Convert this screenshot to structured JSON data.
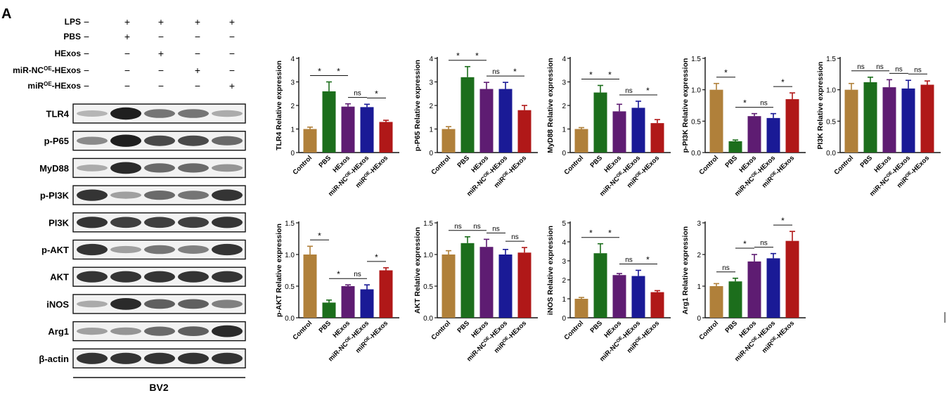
{
  "panel_label": "A",
  "western_blot": {
    "conditions": [
      {
        "name": "LPS",
        "signs": [
          "−",
          "+",
          "+",
          "+",
          "+"
        ]
      },
      {
        "name": "PBS",
        "signs": [
          "−",
          "+",
          "−",
          "−",
          "−"
        ]
      },
      {
        "name": "HExos",
        "signs": [
          "−",
          "−",
          "+",
          "−",
          "−"
        ]
      },
      {
        "name": "miR-NC",
        "sup": "OE",
        "suffix": "-HExos",
        "signs": [
          "−",
          "−",
          "−",
          "+",
          "−"
        ]
      },
      {
        "name": "miR",
        "sup": "OE",
        "suffix": "-HExos",
        "signs": [
          "−",
          "−",
          "−",
          "−",
          "+"
        ]
      }
    ],
    "bands": [
      {
        "label": "TLR4",
        "intensities": [
          0.25,
          0.95,
          0.55,
          0.55,
          0.3
        ]
      },
      {
        "label": "p-P65",
        "intensities": [
          0.45,
          0.95,
          0.75,
          0.75,
          0.6
        ]
      },
      {
        "label": "MyD88",
        "intensities": [
          0.3,
          0.9,
          0.6,
          0.6,
          0.4
        ]
      },
      {
        "label": "p-PI3K",
        "intensities": [
          0.85,
          0.35,
          0.6,
          0.55,
          0.85
        ]
      },
      {
        "label": "PI3K",
        "intensities": [
          0.85,
          0.8,
          0.8,
          0.8,
          0.85
        ]
      },
      {
        "label": "p-AKT",
        "intensities": [
          0.85,
          0.35,
          0.55,
          0.5,
          0.85
        ]
      },
      {
        "label": "AKT",
        "intensities": [
          0.85,
          0.85,
          0.85,
          0.85,
          0.85
        ]
      },
      {
        "label": "iNOS",
        "intensities": [
          0.3,
          0.9,
          0.65,
          0.65,
          0.5
        ]
      },
      {
        "label": "Arg1",
        "intensities": [
          0.35,
          0.4,
          0.6,
          0.65,
          0.9
        ]
      },
      {
        "label": "β-actin",
        "intensities": [
          0.85,
          0.85,
          0.85,
          0.85,
          0.85
        ]
      }
    ],
    "cell_line": "BV2"
  },
  "chart_data": [
    {
      "type": "bar",
      "ylabel": "TLR4 Relative expression",
      "ylim": [
        0,
        4
      ],
      "yticks": [
        0,
        1,
        2,
        3,
        4
      ],
      "categories": [
        "Control",
        "PBS",
        "HExos",
        "miR-NC|OE|-HExos",
        "miR|OE|-HExos"
      ],
      "values": [
        1.0,
        2.6,
        1.95,
        1.93,
        1.3
      ],
      "errors": [
        0.08,
        0.4,
        0.12,
        0.12,
        0.07
      ],
      "sig": [
        {
          "pair": [
            0,
            1
          ],
          "label": "*"
        },
        {
          "pair": [
            1,
            2
          ],
          "label": "*"
        },
        {
          "pair": [
            2,
            3
          ],
          "label": "ns"
        },
        {
          "pair": [
            3,
            4
          ],
          "label": "*"
        }
      ]
    },
    {
      "type": "bar",
      "ylabel": "p-P65 Relative expression",
      "ylim": [
        0,
        4
      ],
      "yticks": [
        0,
        1,
        2,
        3,
        4
      ],
      "categories": [
        "Control",
        "PBS",
        "HExos",
        "miR-NC|OE|-HExos",
        "miR|OE|-HExos"
      ],
      "values": [
        1.0,
        3.2,
        2.7,
        2.7,
        1.8
      ],
      "errors": [
        0.1,
        0.45,
        0.28,
        0.28,
        0.2
      ],
      "sig": [
        {
          "pair": [
            0,
            1
          ],
          "label": "*"
        },
        {
          "pair": [
            1,
            2
          ],
          "label": "*"
        },
        {
          "pair": [
            2,
            3
          ],
          "label": "ns"
        },
        {
          "pair": [
            3,
            4
          ],
          "label": "*"
        }
      ]
    },
    {
      "type": "bar",
      "ylabel": "MyD88 Relative expression",
      "ylim": [
        0,
        4
      ],
      "yticks": [
        0,
        1,
        2,
        3,
        4
      ],
      "categories": [
        "Control",
        "PBS",
        "HExos",
        "miR-NC|OE|-HExos",
        "miR|OE|-HExos"
      ],
      "values": [
        1.0,
        2.55,
        1.75,
        1.9,
        1.25
      ],
      "errors": [
        0.06,
        0.3,
        0.3,
        0.28,
        0.15
      ],
      "sig": [
        {
          "pair": [
            0,
            1
          ],
          "label": "*"
        },
        {
          "pair": [
            1,
            2
          ],
          "label": "*"
        },
        {
          "pair": [
            2,
            3
          ],
          "label": "ns"
        },
        {
          "pair": [
            3,
            4
          ],
          "label": "*"
        }
      ]
    },
    {
      "type": "bar",
      "ylabel": "p-PI3K Relative expression",
      "ylim": [
        0,
        1.5
      ],
      "yticks": [
        0.0,
        0.5,
        1.0,
        1.5
      ],
      "categories": [
        "Control",
        "PBS",
        "HExos",
        "miR-NC|OE|-HExos",
        "miR|OE|-HExos"
      ],
      "values": [
        1.0,
        0.18,
        0.58,
        0.55,
        0.85
      ],
      "errors": [
        0.1,
        0.02,
        0.04,
        0.07,
        0.1
      ],
      "sig": [
        {
          "pair": [
            0,
            1
          ],
          "label": "*"
        },
        {
          "pair": [
            1,
            2
          ],
          "label": "*"
        },
        {
          "pair": [
            2,
            3
          ],
          "label": "ns"
        },
        {
          "pair": [
            3,
            4
          ],
          "label": "*"
        }
      ]
    },
    {
      "type": "bar",
      "ylabel": "PI3K Relative expression",
      "ylim": [
        0,
        1.5
      ],
      "yticks": [
        0.0,
        0.5,
        1.0,
        1.5
      ],
      "categories": [
        "Control",
        "PBS",
        "HExos",
        "miR-NC|OE|-HExos",
        "miR|OE|-HExos"
      ],
      "values": [
        1.0,
        1.12,
        1.04,
        1.02,
        1.08
      ],
      "errors": [
        0.1,
        0.08,
        0.12,
        0.13,
        0.06
      ],
      "sig": [
        {
          "pair": [
            0,
            1
          ],
          "label": "ns"
        },
        {
          "pair": [
            1,
            2
          ],
          "label": "ns"
        },
        {
          "pair": [
            2,
            3
          ],
          "label": "ns"
        },
        {
          "pair": [
            3,
            4
          ],
          "label": "ns"
        }
      ]
    },
    {
      "type": "bar",
      "ylabel": "p-AKT Relative expression",
      "ylim": [
        0,
        1.5
      ],
      "yticks": [
        0.0,
        0.5,
        1.0,
        1.5
      ],
      "categories": [
        "Control",
        "PBS",
        "HExos",
        "miR-NC|OE|-HExos",
        "miR|OE|-HExos"
      ],
      "values": [
        1.0,
        0.24,
        0.5,
        0.45,
        0.75
      ],
      "errors": [
        0.13,
        0.04,
        0.02,
        0.07,
        0.04
      ],
      "sig": [
        {
          "pair": [
            0,
            1
          ],
          "label": "*"
        },
        {
          "pair": [
            1,
            2
          ],
          "label": "*"
        },
        {
          "pair": [
            2,
            3
          ],
          "label": "ns"
        },
        {
          "pair": [
            3,
            4
          ],
          "label": "*"
        }
      ]
    },
    {
      "type": "bar",
      "ylabel": "AKT Relative expression",
      "ylim": [
        0,
        1.5
      ],
      "yticks": [
        0.0,
        0.5,
        1.0,
        1.5
      ],
      "categories": [
        "Control",
        "PBS",
        "HExos",
        "miR-NC|OE|-HExos",
        "miR|OE|-HExos"
      ],
      "values": [
        1.0,
        1.18,
        1.12,
        1.0,
        1.03
      ],
      "errors": [
        0.06,
        0.1,
        0.12,
        0.08,
        0.08
      ],
      "sig": [
        {
          "pair": [
            0,
            1
          ],
          "label": "ns"
        },
        {
          "pair": [
            1,
            2
          ],
          "label": "ns"
        },
        {
          "pair": [
            2,
            3
          ],
          "label": "ns"
        },
        {
          "pair": [
            3,
            4
          ],
          "label": "ns"
        }
      ]
    },
    {
      "type": "bar",
      "ylabel": "iNOS Relative expression",
      "ylim": [
        0,
        5
      ],
      "yticks": [
        0,
        1,
        2,
        3,
        4,
        5
      ],
      "categories": [
        "Control",
        "PBS",
        "HExos",
        "miR-NC|OE|-HExos",
        "miR|OE|-HExos"
      ],
      "values": [
        1.0,
        3.4,
        2.25,
        2.2,
        1.35
      ],
      "errors": [
        0.07,
        0.5,
        0.08,
        0.3,
        0.08
      ],
      "sig": [
        {
          "pair": [
            0,
            1
          ],
          "label": "*"
        },
        {
          "pair": [
            1,
            2
          ],
          "label": "*"
        },
        {
          "pair": [
            2,
            3
          ],
          "label": "ns"
        },
        {
          "pair": [
            3,
            4
          ],
          "label": "*"
        }
      ]
    },
    {
      "type": "bar",
      "ylabel": "Arg1 Relative expression",
      "ylim": [
        0,
        3
      ],
      "yticks": [
        0,
        1,
        2,
        3
      ],
      "categories": [
        "Control",
        "PBS",
        "HExos",
        "miR-NC|OE|-HExos",
        "miR|OE|-HExos"
      ],
      "values": [
        1.0,
        1.15,
        1.78,
        1.88,
        2.43
      ],
      "errors": [
        0.08,
        0.1,
        0.22,
        0.15,
        0.3
      ],
      "sig": [
        {
          "pair": [
            0,
            1
          ],
          "label": "ns"
        },
        {
          "pair": [
            1,
            2
          ],
          "label": "*"
        },
        {
          "pair": [
            2,
            3
          ],
          "label": "ns"
        },
        {
          "pair": [
            3,
            4
          ],
          "label": "*"
        }
      ]
    }
  ],
  "colors": {
    "bars": [
      "#b0803a",
      "#1c6e1c",
      "#5e1c72",
      "#1a1a96",
      "#b01818"
    ],
    "axis": "#111111"
  }
}
